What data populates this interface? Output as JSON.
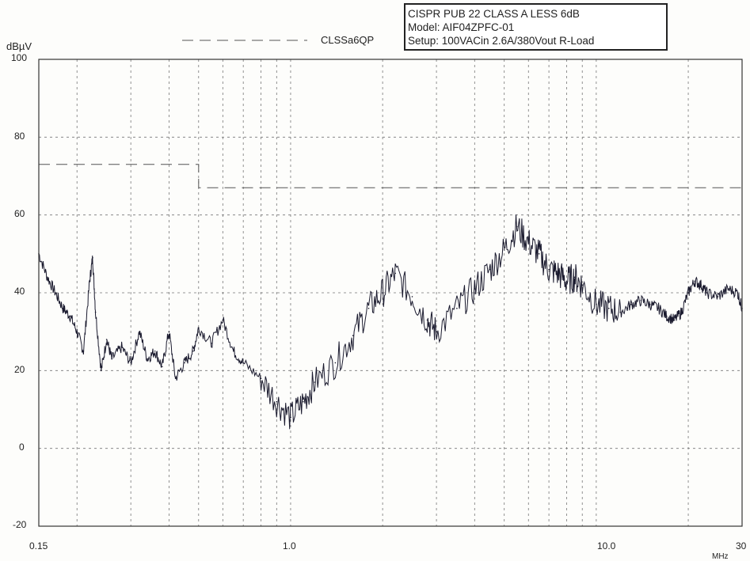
{
  "info_box": {
    "line1": "CISPR PUB 22 CLASS A LESS 6dB",
    "line2": "Model: AIF04ZPFC-01",
    "line3": "Setup: 100VACin 2.6A/380Vout  R-Load"
  },
  "chart_data": {
    "type": "line",
    "ylabel": "dBµV",
    "xunit": "MHz",
    "x_scale": "log",
    "xlim": [
      0.15,
      30
    ],
    "ylim": [
      -20,
      100
    ],
    "grid": true,
    "legend_placement": "top-center",
    "y_ticks": [
      "100",
      "80",
      "60",
      "40",
      "20",
      "0",
      "-20"
    ],
    "x_tick_labels": [
      "0.15",
      "1.0",
      "10.0",
      "30"
    ],
    "x_tick_values": [
      0.15,
      1.0,
      10.0,
      30
    ],
    "colors": {
      "trace": "#1a1a2e",
      "limit": "#555555",
      "grid": "#777777"
    },
    "series": [
      {
        "name": "CLSSa6QP",
        "style": "dashed",
        "x": [
          0.15,
          0.5,
          0.5,
          30
        ],
        "y": [
          73,
          73,
          67,
          67
        ]
      },
      {
        "style": "solid",
        "x": [
          0.15,
          0.16,
          0.17,
          0.18,
          0.19,
          0.2,
          0.21,
          0.22,
          0.225,
          0.23,
          0.24,
          0.25,
          0.26,
          0.28,
          0.3,
          0.32,
          0.34,
          0.36,
          0.38,
          0.4,
          0.42,
          0.45,
          0.48,
          0.5,
          0.55,
          0.6,
          0.65,
          0.7,
          0.8,
          0.9,
          1.0,
          1.1,
          1.2,
          1.4,
          1.6,
          1.8,
          2.0,
          2.2,
          2.5,
          2.8,
          3.0,
          3.5,
          4.0,
          4.5,
          5.0,
          5.5,
          6.0,
          6.5,
          7.0,
          7.5,
          8.0,
          8.5,
          9.0,
          10.0,
          11.0,
          12.0,
          13.0,
          14.0,
          15.0,
          16.0,
          17.0,
          18.0,
          19.0,
          20.0,
          21.0,
          22.0,
          23.0,
          25.0,
          27.0,
          29.0,
          30.0
        ],
        "y": [
          50,
          44,
          40,
          36,
          34,
          30,
          25,
          43,
          49,
          35,
          20,
          28,
          23,
          26,
          22,
          30,
          23,
          25,
          21,
          30,
          18,
          22,
          25,
          31,
          27,
          33,
          25,
          22,
          18,
          12,
          8,
          12,
          17,
          22,
          29,
          36,
          40,
          45,
          39,
          33,
          30,
          36,
          41,
          46,
          51,
          57,
          53,
          50,
          46,
          45,
          43,
          44,
          42,
          37,
          36,
          35,
          37,
          38,
          37,
          36,
          34,
          33,
          35,
          40,
          43,
          42,
          40,
          39,
          41,
          40,
          36
        ]
      }
    ]
  }
}
